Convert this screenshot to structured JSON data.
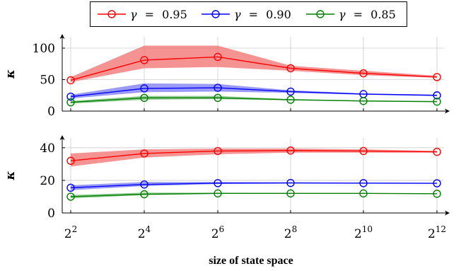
{
  "chart_data": {
    "type": "line",
    "legend": {
      "placement": "top-center",
      "entries": [
        {
          "symbol": "γ",
          "equals": "=",
          "value": "0.95",
          "color": "#ff0000"
        },
        {
          "symbol": "γ",
          "equals": "=",
          "value": "0.90",
          "color": "#0000ff"
        },
        {
          "symbol": "γ",
          "equals": "=",
          "value": "0.85",
          "color": "#008000"
        }
      ]
    },
    "x": {
      "scale": "log2",
      "xlabel": "size of state space",
      "values": [
        4,
        16,
        64,
        256,
        1024,
        4096
      ],
      "tick_labels": [
        {
          "base": "2",
          "exp": "2"
        },
        {
          "base": "2",
          "exp": "4"
        },
        {
          "base": "2",
          "exp": "6"
        },
        {
          "base": "2",
          "exp": "8"
        },
        {
          "base": "2",
          "exp": "10"
        },
        {
          "base": "2",
          "exp": "12"
        }
      ]
    },
    "grid": true,
    "panels": [
      {
        "ylabel": "κ",
        "ylim": [
          0,
          118
        ],
        "yticks": [
          0,
          50,
          100
        ],
        "ytick_labels": [
          "0",
          "50",
          "100"
        ],
        "series": [
          {
            "color": "#ff0000",
            "band_color": "#f26d6d",
            "values": [
              49,
              81,
              86,
              68,
              60,
              54
            ],
            "lower": [
              46,
              68,
              70,
              64,
              57,
              53
            ],
            "upper": [
              54,
              104,
              104,
              72,
              64,
              56
            ]
          },
          {
            "color": "#0000ff",
            "band_color": "#7a7af2",
            "values": [
              23,
              36,
              37,
              31,
              27,
              25
            ],
            "lower": [
              20,
              30,
              31,
              29,
              26,
              24
            ],
            "upper": [
              26,
              44,
              43,
              33,
              28,
              26
            ]
          },
          {
            "color": "#008000",
            "band_color": "#6db96d",
            "values": [
              14,
              21,
              21,
              18,
              16,
              15
            ],
            "lower": [
              12,
              18,
              19,
              17,
              16,
              15
            ],
            "upper": [
              16,
              24,
              24,
              19,
              17,
              16
            ]
          }
        ]
      },
      {
        "ylabel": "κ",
        "ylim": [
          0,
          46
        ],
        "yticks": [
          0,
          20,
          40
        ],
        "ytick_labels": [
          "0",
          "20",
          "40"
        ],
        "series": [
          {
            "color": "#ff0000",
            "band_color": "#f26d6d",
            "values": [
              32,
              36.5,
              38,
              38.3,
              38,
              37.5
            ],
            "lower": [
              28.5,
              34,
              36,
              37,
              37,
              37
            ],
            "upper": [
              36.5,
              39,
              39.5,
              39.5,
              39,
              38
            ]
          },
          {
            "color": "#0000ff",
            "band_color": "#7a7af2",
            "values": [
              15.5,
              17.5,
              18.3,
              18.4,
              18.3,
              18.2
            ],
            "lower": [
              14,
              16.5,
              17.8,
              18.1,
              18.1,
              18.1
            ],
            "upper": [
              17,
              19,
              19,
              18.8,
              18.6,
              18.5
            ]
          },
          {
            "color": "#008000",
            "band_color": "#6db96d",
            "values": [
              10,
              11.5,
              12,
              12,
              12,
              11.8
            ],
            "lower": [
              9,
              11,
              11.7,
              11.8,
              11.8,
              11.7
            ],
            "upper": [
              11,
              12.5,
              12.4,
              12.2,
              12.1,
              12
            ]
          }
        ]
      }
    ]
  }
}
